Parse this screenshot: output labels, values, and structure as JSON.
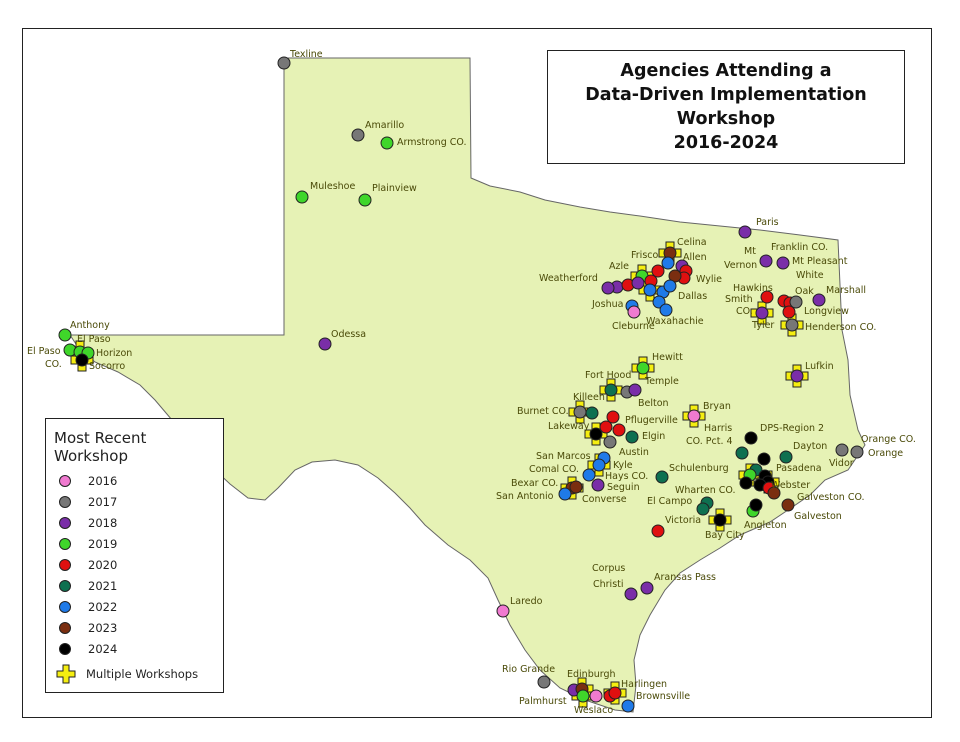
{
  "title": {
    "lines": [
      "Agencies Attending a",
      "Data-Driven Implementation",
      "Workshop",
      "2016-2024"
    ]
  },
  "legend": {
    "title_lines": [
      "Most Recent",
      "Workshop"
    ],
    "years": [
      {
        "label": "2016",
        "color": "#f07ad0"
      },
      {
        "label": "2017",
        "color": "#777777"
      },
      {
        "label": "2018",
        "color": "#7a2ea8"
      },
      {
        "label": "2019",
        "color": "#3fd62a"
      },
      {
        "label": "2020",
        "color": "#e01010"
      },
      {
        "label": "2021",
        "color": "#0e7050"
      },
      {
        "label": "2022",
        "color": "#1f7ae8"
      },
      {
        "label": "2023",
        "color": "#7a2e10"
      },
      {
        "label": "2024",
        "color": "#000000"
      }
    ],
    "multiple_label": "Multiple Workshops",
    "multiple_color": "#f5ee10"
  },
  "map": {
    "land_color": "#e6f2b5",
    "outline_color": "#666666",
    "labels": [
      "Texline",
      "Amarillo",
      "Armstrong CO.",
      "Muleshoe",
      "Plainview",
      "Odessa",
      "Anthony",
      "El Paso",
      "El Paso",
      "CO.",
      "Horizon",
      "Socorro",
      "Paris",
      "Mt",
      "Vernon",
      "Franklin CO.",
      "Mt Pleasant",
      "White",
      "Oak",
      "Hawkins",
      "Smith",
      "CO.",
      "Tyler",
      "Marshall",
      "Longview",
      "Henderson CO.",
      "Celina",
      "Frisco",
      "Allen",
      "Azle",
      "Wylie",
      "Weatherford",
      "Dallas",
      "Joshua",
      "Waxahachie",
      "Cleburne",
      "Lufkin",
      "Hewitt",
      "Fort Hood",
      "Temple",
      "Killeen",
      "Belton",
      "Burnet CO.",
      "Bryan",
      "Pflugerville",
      "Lakeway",
      "Harris",
      "CO. Pct. 4",
      "DPS-Region 2",
      "Elgin",
      "Austin",
      "Dayton",
      "San Marcos",
      "Kyle",
      "Comal CO.",
      "Hays CO.",
      "Seguin",
      "Schulenburg",
      "Pasadena",
      "Webster",
      "Bexar CO.",
      "Converse",
      "San Antonio",
      "Wharten CO.",
      "El Campo",
      "Galveston CO.",
      "Angleton",
      "Galveston",
      "Victoria",
      "Bay City",
      "Orange CO.",
      "Vidor",
      "Orange",
      "Corpus",
      "Christi",
      "Aransas Pass",
      "Laredo",
      "Rio Grande",
      "Edinburgh",
      "Harlingen",
      "Palmhurst",
      "Brownsville",
      "Weslaco"
    ]
  }
}
